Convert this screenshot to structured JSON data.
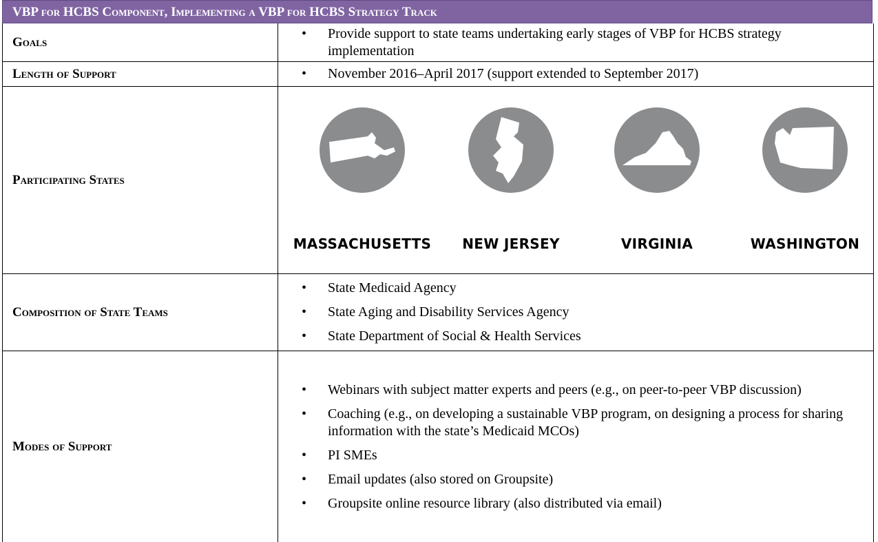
{
  "header": {
    "title": "VBP for HCBS Component, Implementing a VBP for HCBS Strategy Track"
  },
  "rows": [
    {
      "label": "Goals",
      "items": [
        "Provide support to state teams undertaking early stages of VBP for HCBS strategy implementation"
      ]
    },
    {
      "label": "Length of Support",
      "items": [
        "November 2016–April 2017 (support extended to September 2017)"
      ]
    },
    {
      "label": "Participating States",
      "states": [
        "MASSACHUSETTS",
        "NEW JERSEY",
        "VIRGINIA",
        "WASHINGTON"
      ]
    },
    {
      "label": "Composition of State Teams",
      "items": [
        "State Medicaid Agency",
        "State Aging and Disability Services Agency",
        "State Department of Social & Health Services"
      ]
    },
    {
      "label": "Modes of Support",
      "items": [
        "Webinars with subject matter experts and peers (e.g., on peer-to-peer VBP discussion)",
        "Coaching (e.g., on developing a sustainable VBP program, on designing a process for sharing information with the state’s Medicaid MCOs)",
        "PI SMEs",
        "Email updates (also stored on Groupsite)",
        "Groupsite online resource library (also distributed via email)"
      ]
    }
  ]
}
